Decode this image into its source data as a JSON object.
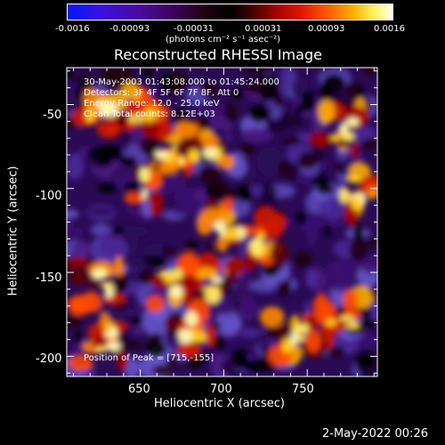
{
  "colorbar": {
    "tick_labels": [
      "-0.0016",
      "-0.00093",
      "-0.00031",
      "0.00031",
      "0.00093",
      "0.0016"
    ],
    "units": "(photons cm⁻² s⁻¹ asec⁻²)"
  },
  "plot": {
    "title": "Reconstructed RHESSI Image",
    "info_lines": [
      "30-May-2003 01:43:08.000 to 01:45:24.000",
      "Detectors: 3F 4F 5F 6F 7F 8F, Att 0",
      "Energy Range: 12.0 - 25.0 keV",
      "Clean    Total counts: 8.12E+03"
    ],
    "peak_note": "Position of Peak = [715,-155]",
    "xlabel": "Heliocentric X (arcsec)",
    "ylabel": "Heliocentric Y (arcsec)",
    "x_ticks": [
      "650",
      "700",
      "750"
    ],
    "y_ticks": [
      "-50",
      "-100",
      "-150",
      "-200"
    ]
  },
  "footer": {
    "timestamp": "2-May-2022 00:26"
  }
}
